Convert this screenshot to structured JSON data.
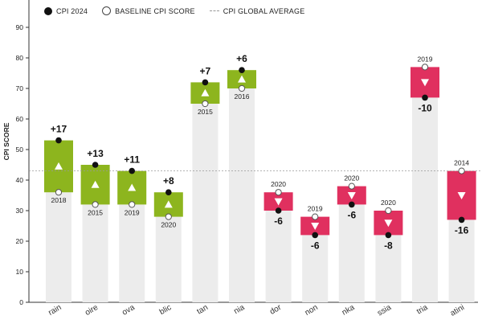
{
  "legend": {
    "cpi_2024": "CPI 2024",
    "baseline": "BASELINE CPI SCORE",
    "global_avg": "CPI GLOBAL AVERAGE"
  },
  "colors": {
    "improver": "#8db51e",
    "decliner": "#e0305f",
    "bar_background": "#ececec",
    "average_line": "#9a9a9a"
  },
  "chart_data": {
    "type": "bar",
    "ylabel": "CPI SCORE",
    "ylim": [
      0,
      100
    ],
    "yticks": [
      0,
      10,
      20,
      30,
      40,
      50,
      60,
      70,
      80,
      90
    ],
    "global_average": 43,
    "bars": [
      {
        "label": "rain",
        "baseline": 36,
        "baseline_year": "2018",
        "cpi_2024": 53,
        "change": "+17"
      },
      {
        "label": "oire",
        "baseline": 32,
        "baseline_year": "2015",
        "cpi_2024": 45,
        "change": "+13"
      },
      {
        "label": "ova",
        "baseline": 32,
        "baseline_year": "2019",
        "cpi_2024": 43,
        "change": "+11"
      },
      {
        "label": "blic",
        "baseline": 28,
        "baseline_year": "2020",
        "cpi_2024": 36,
        "change": "+8"
      },
      {
        "label": "tan",
        "baseline": 65,
        "baseline_year": "2015",
        "cpi_2024": 72,
        "change": "+7"
      },
      {
        "label": "nia",
        "baseline": 70,
        "baseline_year": "2016",
        "cpi_2024": 76,
        "change": "+6"
      },
      {
        "label": "dor",
        "baseline": 36,
        "baseline_year": "2020",
        "cpi_2024": 30,
        "change": "-6"
      },
      {
        "label": "non",
        "baseline": 28,
        "baseline_year": "2019",
        "cpi_2024": 22,
        "change": "-6"
      },
      {
        "label": "nka",
        "baseline": 38,
        "baseline_year": "2020",
        "cpi_2024": 32,
        "change": "-6"
      },
      {
        "label": "ssia",
        "baseline": 30,
        "baseline_year": "2020",
        "cpi_2024": 22,
        "change": "-8"
      },
      {
        "label": "tria",
        "baseline": 77,
        "baseline_year": "2019",
        "cpi_2024": 67,
        "change": "-10"
      },
      {
        "label": "atini",
        "baseline": 43,
        "baseline_year": "2014",
        "cpi_2024": 27,
        "change": "-16"
      }
    ]
  }
}
